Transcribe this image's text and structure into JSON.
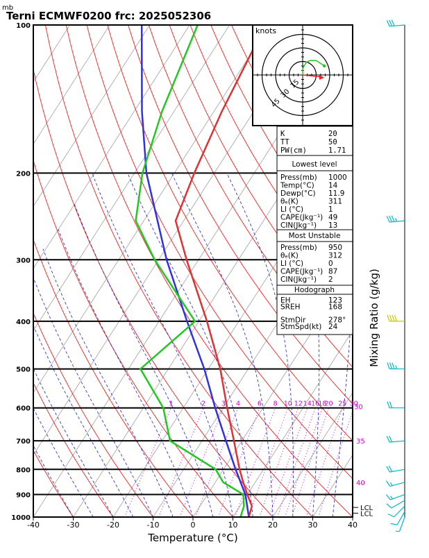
{
  "header": {
    "unit_label": "mb",
    "title": "Terni ECMWF0200  frc: 2025052306"
  },
  "chart_data": {
    "type": "skewt",
    "xlabel": "Temperature (°C)",
    "right_label": "Mixing Ratio (g/kg)",
    "x_ticks": [
      -40,
      -30,
      -20,
      -10,
      0,
      10,
      20,
      30,
      40
    ],
    "p_ticks": [
      100,
      200,
      300,
      400,
      500,
      600,
      700,
      800,
      900,
      1000
    ],
    "p_range": [
      1000,
      100
    ],
    "temperature_profile": [
      {
        "p": 1000,
        "t": 14
      },
      {
        "p": 950,
        "t": 13
      },
      {
        "p": 900,
        "t": 10
      },
      {
        "p": 850,
        "t": 7
      },
      {
        "p": 800,
        "t": 4
      },
      {
        "p": 700,
        "t": -2
      },
      {
        "p": 600,
        "t": -9
      },
      {
        "p": 500,
        "t": -17
      },
      {
        "p": 400,
        "t": -28
      },
      {
        "p": 300,
        "t": -43
      },
      {
        "p": 250,
        "t": -52
      },
      {
        "p": 200,
        "t": -55
      },
      {
        "p": 150,
        "t": -58
      },
      {
        "p": 100,
        "t": -61
      }
    ],
    "dewpoint_profile": [
      {
        "p": 1000,
        "t": 11.9
      },
      {
        "p": 950,
        "t": 11
      },
      {
        "p": 900,
        "t": 9
      },
      {
        "p": 850,
        "t": 2
      },
      {
        "p": 800,
        "t": -2
      },
      {
        "p": 700,
        "t": -18
      },
      {
        "p": 600,
        "t": -25
      },
      {
        "p": 500,
        "t": -37
      },
      {
        "p": 400,
        "t": -31
      },
      {
        "p": 300,
        "t": -51
      },
      {
        "p": 250,
        "t": -62
      },
      {
        "p": 200,
        "t": -68
      },
      {
        "p": 150,
        "t": -73
      },
      {
        "p": 100,
        "t": -78
      }
    ],
    "parcel_profile": [
      {
        "p": 1000,
        "t": 14
      },
      {
        "p": 900,
        "t": 9.5
      },
      {
        "p": 800,
        "t": 3
      },
      {
        "p": 700,
        "t": -4
      },
      {
        "p": 600,
        "t": -12
      },
      {
        "p": 500,
        "t": -21
      },
      {
        "p": 400,
        "t": -33
      },
      {
        "p": 300,
        "t": -48
      },
      {
        "p": 200,
        "t": -67
      },
      {
        "p": 150,
        "t": -78
      },
      {
        "p": 100,
        "t": -92
      }
    ],
    "mixing_ratio_labels": [
      "1",
      "2",
      "3",
      "4",
      "6",
      "8",
      "10",
      "12",
      "14",
      "16",
      "18",
      "20",
      "25",
      "30"
    ],
    "mixing_ratio_values": [
      1,
      2,
      3,
      4,
      6,
      8,
      10,
      12,
      14,
      16,
      18,
      20,
      25,
      30
    ],
    "theta_e_labels": [
      "30",
      "35",
      "40"
    ],
    "lcl_labels": [
      "LCL",
      "LCL"
    ],
    "hodograph": {
      "label": "knots",
      "ring_labels": [
        "15",
        "30",
        "45"
      ],
      "ring_values": [
        15,
        30,
        45
      ],
      "trace_uv": [
        [
          0,
          0
        ],
        [
          0,
          7
        ],
        [
          4,
          14
        ],
        [
          8,
          16
        ],
        [
          15,
          16
        ],
        [
          24,
          10
        ]
      ],
      "storm_motion_uv": [
        24,
        -3
      ]
    }
  },
  "indices": {
    "k_label": "K",
    "k_value": "20",
    "tt_label": "TT",
    "tt_value": "50",
    "pw_label": "PW(cm)",
    "pw_value": "1.71"
  },
  "lowest_level": {
    "title": "Lowest level",
    "rows": [
      {
        "label": "Press(mb)",
        "value": "1000"
      },
      {
        "label": "Temp(°C)",
        "value": "14"
      },
      {
        "label": "Dewp(°C)",
        "value": "11.9"
      },
      {
        "label": "θₑ(K)",
        "value": "311"
      },
      {
        "label": "LI (°C)",
        "value": "1"
      },
      {
        "label": "CAPE(Jkg⁻¹)",
        "value": "49"
      },
      {
        "label": "CIN(Jkg⁻¹)",
        "value": "13"
      }
    ]
  },
  "most_unstable": {
    "title": "Most Unstable",
    "rows": [
      {
        "label": "Press(mb)",
        "value": "950"
      },
      {
        "label": "θₑ(K)",
        "value": "312"
      },
      {
        "label": "LI (°C)",
        "value": "0"
      },
      {
        "label": "CAPE(Jkg⁻¹)",
        "value": "87"
      },
      {
        "label": "CIN(Jkg⁻¹)",
        "value": "2"
      }
    ]
  },
  "hodograph_table": {
    "title": "Hodograph",
    "rows": [
      {
        "label": "EH",
        "value": "123"
      },
      {
        "label": "SREH",
        "value": "168"
      },
      {
        "label": "",
        "value": ""
      },
      {
        "label": "StmDir",
        "value": "278°"
      },
      {
        "label": "StmSpd(kt)",
        "value": "24"
      }
    ]
  },
  "colors": {
    "temperature": "#e03030",
    "dewpoint": "#22c822",
    "parcel": "#3030e8",
    "dry_adiabat": "#ee2020",
    "moist_adiabat": "#2020d0",
    "mixing_ratio": "#cc00cc",
    "isotherm": "#b0b0b0",
    "storm_motion": "#ee2020",
    "wind_barb": "#00b8c8",
    "wind_barb_highlight": "#c8c800"
  },
  "wind_barbs": [
    {
      "p": 1000,
      "speed": 8,
      "dir": 200,
      "color": "wind_barb"
    },
    {
      "p": 975,
      "speed": 10,
      "dir": 210,
      "color": "wind_barb"
    },
    {
      "p": 950,
      "speed": 10,
      "dir": 225,
      "color": "wind_barb"
    },
    {
      "p": 925,
      "speed": 12,
      "dir": 240,
      "color": "wind_barb"
    },
    {
      "p": 900,
      "speed": 15,
      "dir": 250,
      "color": "wind_barb"
    },
    {
      "p": 850,
      "speed": 18,
      "dir": 255,
      "color": "wind_barb"
    },
    {
      "p": 800,
      "speed": 20,
      "dir": 260,
      "color": "wind_barb"
    },
    {
      "p": 700,
      "speed": 20,
      "dir": 265,
      "color": "wind_barb"
    },
    {
      "p": 600,
      "speed": 20,
      "dir": 270,
      "color": "wind_barb"
    },
    {
      "p": 500,
      "speed": 35,
      "dir": 270,
      "color": "wind_barb"
    },
    {
      "p": 400,
      "speed": 40,
      "dir": 270,
      "color": "wind_barb_highlight"
    },
    {
      "p": 250,
      "speed": 35,
      "dir": 265,
      "color": "wind_barb"
    },
    {
      "p": 100,
      "speed": 30,
      "dir": 265,
      "color": "wind_barb"
    }
  ]
}
